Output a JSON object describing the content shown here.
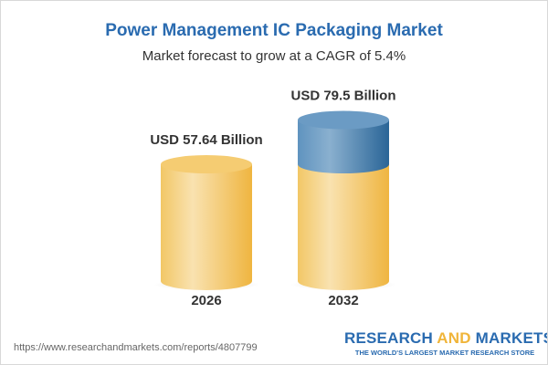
{
  "title": "Power Management IC Packaging Market",
  "subtitle": "Market forecast to grow at a CAGR of 5.4%",
  "chart_data": {
    "type": "bar",
    "style": "3d-cylinder",
    "categories": [
      "2026",
      "2032"
    ],
    "values": [
      57.64,
      79.5
    ],
    "data_labels": [
      "USD 57.64 Billion",
      "USD 79.5 Billion"
    ],
    "unit": "USD Billion",
    "cagr": "5.4%",
    "colors": {
      "base": "#f3c565",
      "growth": "#4f86b5"
    }
  },
  "footer": {
    "url": "https://www.researchandmarkets.com/reports/4807799",
    "logo_word1": "RESEARCH ",
    "logo_word2": "AND",
    "logo_word3": " MARKETS",
    "tagline": "THE WORLD'S LARGEST MARKET RESEARCH STORE"
  }
}
